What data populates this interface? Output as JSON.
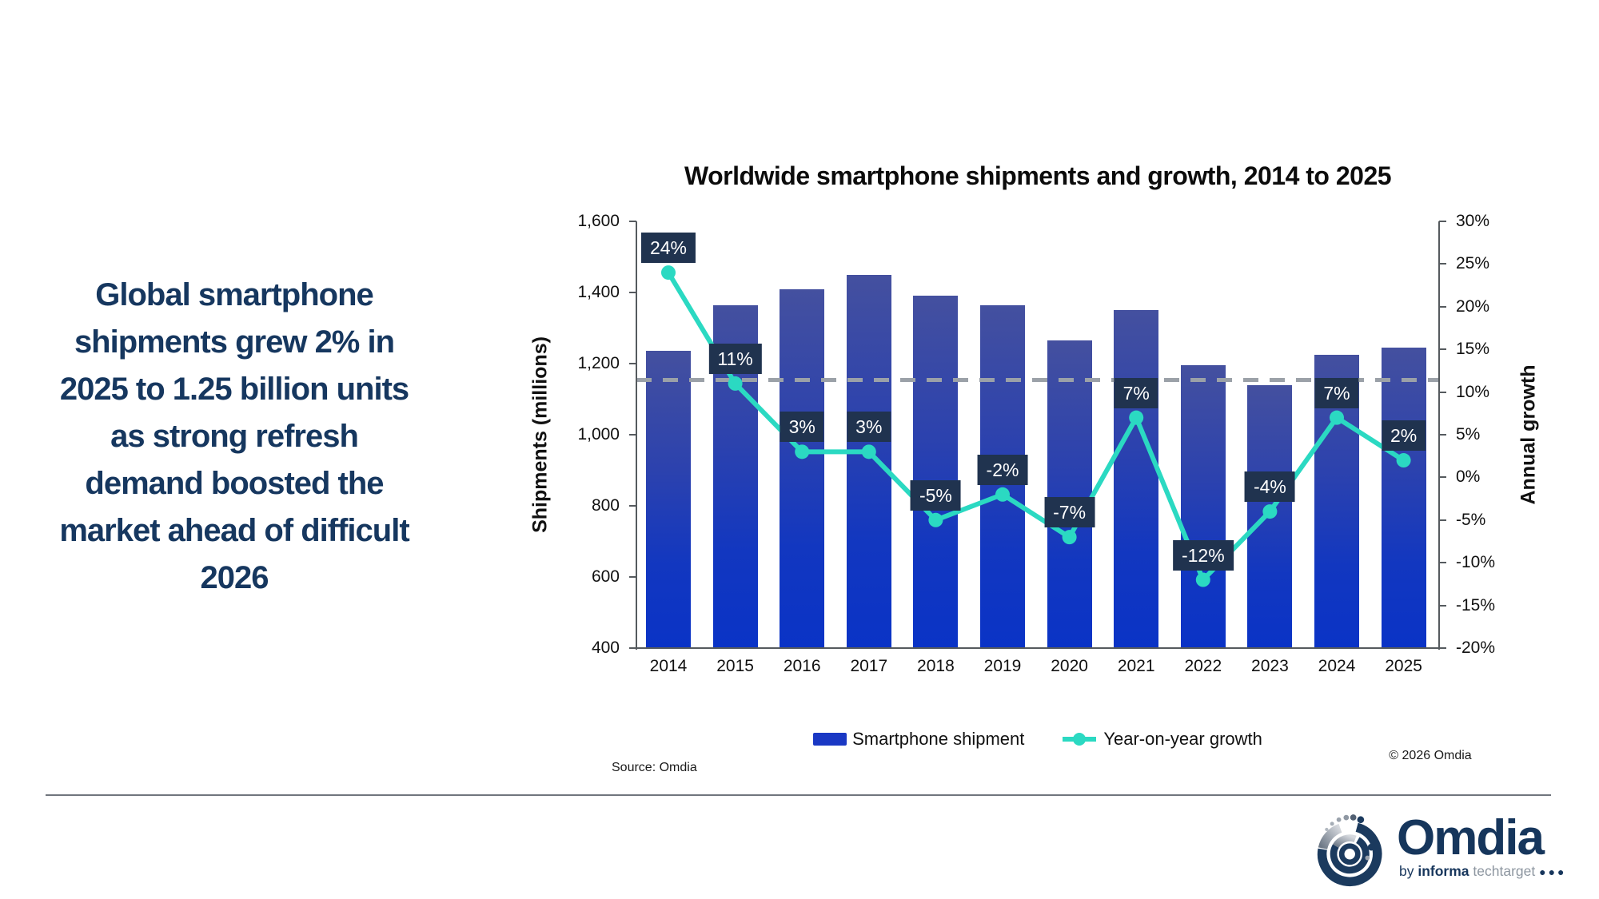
{
  "headline": {
    "lines": [
      "Global smartphone",
      "shipments grew 2% in",
      "2025 to 1.25 billion units",
      "as strong refresh",
      "demand boosted the",
      "market ahead of difficult",
      "2026"
    ]
  },
  "chart_data": {
    "type": "bar+line",
    "title": "Worldwide smartphone shipments and growth, 2014 to 2025",
    "categories": [
      "2014",
      "2015",
      "2016",
      "2017",
      "2018",
      "2019",
      "2020",
      "2021",
      "2022",
      "2023",
      "2024",
      "2025"
    ],
    "series": [
      {
        "name": "Smartphone shipment",
        "type": "bar",
        "axis": "left",
        "unit": "millions",
        "values": [
          1235,
          1365,
          1410,
          1450,
          1390,
          1365,
          1265,
          1350,
          1195,
          1140,
          1225,
          1245
        ]
      },
      {
        "name": "Year-on-year growth",
        "type": "line",
        "axis": "right",
        "unit": "%",
        "values": [
          24,
          11,
          3,
          3,
          -5,
          -2,
          -7,
          7,
          -12,
          -4,
          7,
          2
        ],
        "labels": [
          "24%",
          "11%",
          "3%",
          "3%",
          "-5%",
          "-2%",
          "-7%",
          "7%",
          "-12%",
          "-4%",
          "7%",
          "2%"
        ]
      }
    ],
    "left_axis": {
      "label": "Shipments (millions)",
      "min": 400,
      "max": 1600,
      "tick_values": [
        1600,
        1400,
        1200,
        1000,
        800,
        600,
        400
      ],
      "tick_labels": [
        "1,600",
        "1,400",
        "1,200",
        "1,000",
        "800",
        "600",
        "400"
      ]
    },
    "right_axis": {
      "label": "Annual growth",
      "min": -20,
      "max": 30,
      "tick_values": [
        30,
        25,
        20,
        15,
        10,
        5,
        0,
        -5,
        -10,
        -15,
        -20
      ],
      "tick_labels": [
        "30%",
        "25%",
        "20%",
        "15%",
        "10%",
        "5%",
        "0%",
        "-5%",
        "-10%",
        "-15%",
        "-20%"
      ]
    },
    "reference_line": {
      "axis": "left",
      "value": 1155,
      "style": "dashed"
    },
    "legend": [
      {
        "label": "Smartphone shipment",
        "marker": "bar-swatch"
      },
      {
        "label": "Year-on-year growth",
        "marker": "line-dot"
      }
    ],
    "grid": false,
    "legend_position": "bottom"
  },
  "footer": {
    "source": "Source: Omdia",
    "copyright": "© 2026 Omdia",
    "logo": {
      "wordmark": "Omdia",
      "sub_by": "by ",
      "sub_informa": "informa",
      "sub_tech": " techtarget ",
      "sub_dots": "●●●"
    }
  },
  "colors": {
    "headline_navy": "#16375f",
    "bar_top": "#44509f",
    "bar_bottom": "#0a33c6",
    "legend_bar_swatch": "#1a38c4",
    "growth_line": "#2bd9c2",
    "label_box_bg": "#20334f",
    "label_box_text": "#ffffff",
    "dashed_reference": "#9ba1a8",
    "axis_text": "#111111",
    "logo_navy": "#16365c",
    "logo_gray": "#8d96a0"
  }
}
